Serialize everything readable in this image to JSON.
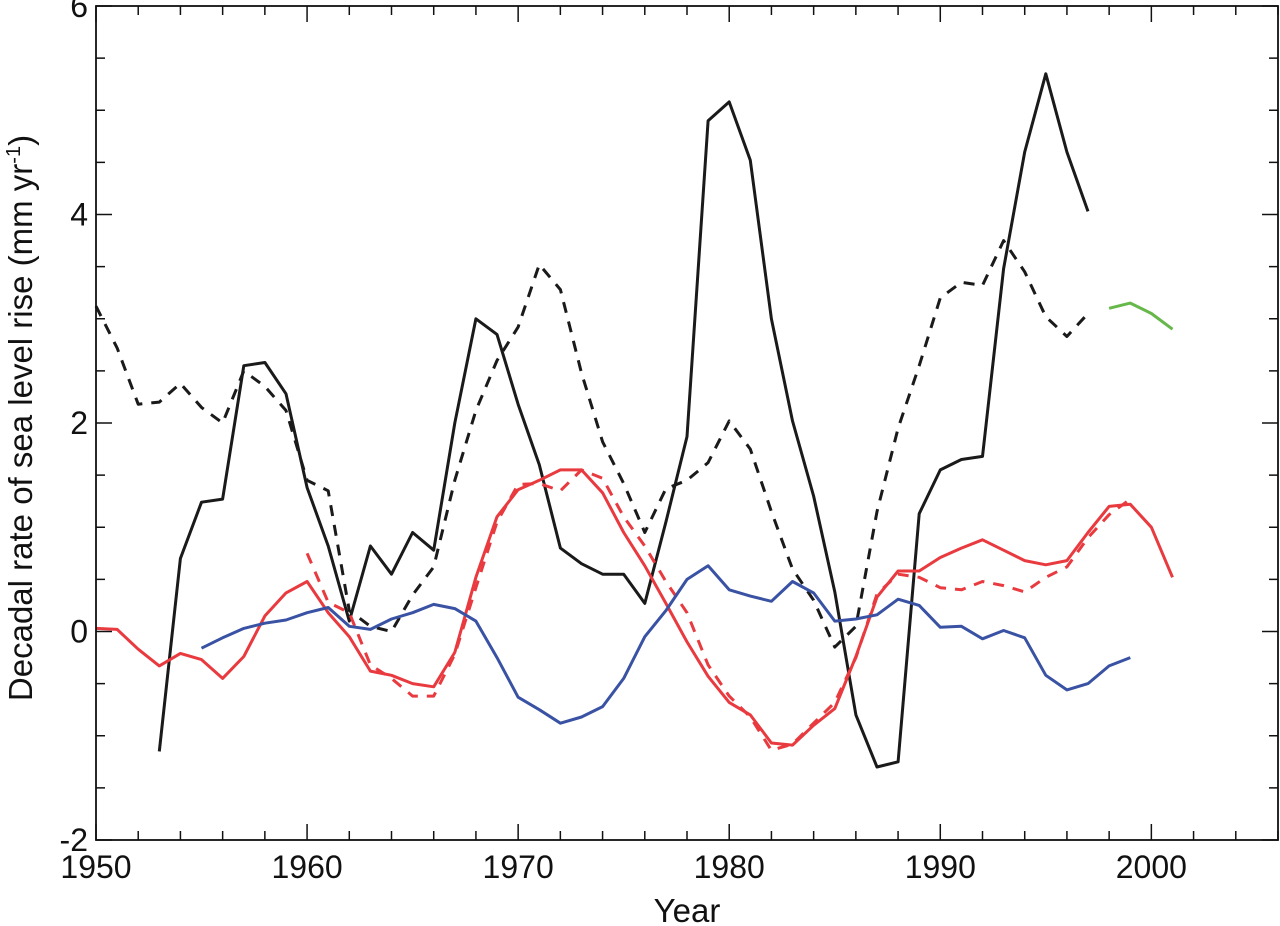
{
  "chart_data": {
    "type": "line",
    "xlabel": "Year",
    "ylabel": "Decadal rate of sea level rise (mm yr",
    "ylabel_sup": "-1",
    "ylabel_close": ")",
    "xlim": [
      1950,
      2006
    ],
    "ylim": [
      -2,
      6
    ],
    "x_ticks": [
      1950,
      1960,
      1970,
      1980,
      1990,
      2000
    ],
    "x_tick_labels": [
      "1950",
      "1960",
      "1970",
      "1980",
      "1990",
      "2000"
    ],
    "y_ticks": [
      -2,
      0,
      2,
      4,
      6
    ],
    "y_tick_labels": [
      "-2",
      "0",
      "2",
      "4",
      "6"
    ],
    "x_minor_step": 2,
    "y_minor_step": 0.5,
    "grid": false,
    "legend": "none",
    "series": [
      {
        "color": "#1a1a1a",
        "style": "solid",
        "x": [
          1953,
          1954,
          1955,
          1956,
          1957,
          1958,
          1959,
          1960,
          1961,
          1962,
          1963,
          1964,
          1965,
          1966,
          1967,
          1968,
          1969,
          1970,
          1971,
          1972,
          1973,
          1974,
          1975,
          1976,
          1977,
          1978,
          1979,
          1980,
          1981,
          1982,
          1983,
          1984,
          1985,
          1986,
          1987,
          1988,
          1989,
          1990,
          1991,
          1992,
          1993,
          1994,
          1995,
          1996,
          1997
        ],
        "y": [
          -1.15,
          0.7,
          1.24,
          1.27,
          2.55,
          2.58,
          2.28,
          1.38,
          0.82,
          0.1,
          0.82,
          0.55,
          0.95,
          0.78,
          2.0,
          3.0,
          2.85,
          2.18,
          1.6,
          0.8,
          0.65,
          0.55,
          0.55,
          0.27,
          1.05,
          1.87,
          4.9,
          5.08,
          4.52,
          3.0,
          2.02,
          1.3,
          0.38,
          -0.8,
          -1.3,
          -1.25,
          1.13,
          1.55,
          1.65,
          1.68,
          3.48,
          4.6,
          5.35,
          4.6,
          4.03
        ]
      },
      {
        "color": "#1a1a1a",
        "style": "dashed",
        "x": [
          1950,
          1951,
          1952,
          1953,
          1954,
          1955,
          1956,
          1957,
          1958,
          1959,
          1960,
          1961,
          1962,
          1963,
          1964,
          1965,
          1966,
          1967,
          1968,
          1969,
          1970,
          1971,
          1972,
          1973,
          1974,
          1975,
          1976,
          1977,
          1978,
          1979,
          1980,
          1981,
          1982,
          1983,
          1984,
          1985,
          1986,
          1987,
          1988,
          1989,
          1990,
          1991,
          1992,
          1993,
          1994,
          1995,
          1996,
          1997
        ],
        "y": [
          3.12,
          2.72,
          2.18,
          2.2,
          2.38,
          2.15,
          2.0,
          2.5,
          2.35,
          2.12,
          1.45,
          1.35,
          0.2,
          0.05,
          0.0,
          0.35,
          0.62,
          1.45,
          2.12,
          2.6,
          2.92,
          3.52,
          3.28,
          2.48,
          1.82,
          1.42,
          0.95,
          1.37,
          1.45,
          1.62,
          2.02,
          1.75,
          1.15,
          0.6,
          0.3,
          -0.15,
          0.05,
          1.15,
          1.95,
          2.55,
          3.2,
          3.35,
          3.32,
          3.75,
          3.45,
          3.02,
          2.83,
          3.05
        ]
      },
      {
        "color": "#e83a3f",
        "style": "solid",
        "x": [
          1950,
          1951,
          1952,
          1953,
          1954,
          1955,
          1956,
          1957,
          1958,
          1959,
          1960,
          1961,
          1962,
          1963,
          1964,
          1965,
          1966,
          1967,
          1968,
          1969,
          1970,
          1971,
          1972,
          1973,
          1974,
          1975,
          1976,
          1977,
          1978,
          1979,
          1980,
          1981,
          1982,
          1983,
          1984,
          1985,
          1986,
          1987,
          1988,
          1989,
          1990,
          1991,
          1992,
          1993,
          1994,
          1995,
          1996,
          1997,
          1998,
          1999,
          2000,
          2001
        ],
        "y": [
          0.03,
          0.02,
          -0.17,
          -0.33,
          -0.21,
          -0.27,
          -0.45,
          -0.24,
          0.15,
          0.37,
          0.48,
          0.18,
          -0.05,
          -0.38,
          -0.42,
          -0.5,
          -0.53,
          -0.2,
          0.52,
          1.1,
          1.36,
          1.45,
          1.55,
          1.55,
          1.33,
          0.95,
          0.63,
          0.27,
          -0.1,
          -0.43,
          -0.68,
          -0.8,
          -1.07,
          -1.09,
          -0.9,
          -0.74,
          -0.24,
          0.33,
          0.58,
          0.58,
          0.71,
          0.8,
          0.88,
          0.78,
          0.68,
          0.64,
          0.68,
          0.95,
          1.2,
          1.22,
          1.0,
          0.52
        ]
      },
      {
        "color": "#e83a3f",
        "style": "dashed",
        "x": [
          1960,
          1961,
          1962,
          1963,
          1964,
          1965,
          1966,
          1967,
          1968,
          1969,
          1970,
          1971,
          1972,
          1973,
          1974,
          1975,
          1976,
          1977,
          1978,
          1979,
          1980,
          1981,
          1982,
          1983,
          1984,
          1985,
          1986,
          1987,
          1988,
          1989,
          1990,
          1991,
          1992,
          1993,
          1994,
          1995,
          1996,
          1997,
          1998,
          1999
        ],
        "y": [
          0.75,
          0.28,
          0.18,
          -0.32,
          -0.45,
          -0.62,
          -0.62,
          -0.22,
          0.42,
          1.05,
          1.41,
          1.42,
          1.35,
          1.55,
          1.47,
          1.1,
          0.82,
          0.48,
          0.18,
          -0.32,
          -0.62,
          -0.82,
          -1.14,
          -1.08,
          -0.88,
          -0.68,
          -0.25,
          0.36,
          0.55,
          0.52,
          0.42,
          0.4,
          0.48,
          0.44,
          0.38,
          0.52,
          0.62,
          0.9,
          1.12,
          1.27
        ]
      },
      {
        "color": "#3952a3",
        "style": "solid",
        "x": [
          1955,
          1956,
          1957,
          1958,
          1959,
          1960,
          1961,
          1962,
          1963,
          1964,
          1965,
          1966,
          1967,
          1968,
          1969,
          1970,
          1971,
          1972,
          1973,
          1974,
          1975,
          1976,
          1977,
          1978,
          1979,
          1980,
          1981,
          1982,
          1983,
          1984,
          1985,
          1986,
          1987,
          1988,
          1989,
          1990,
          1991,
          1992,
          1993,
          1994,
          1995,
          1996,
          1997,
          1998,
          1999
        ],
        "y": [
          -0.16,
          -0.06,
          0.03,
          0.08,
          0.11,
          0.18,
          0.23,
          0.05,
          0.02,
          0.12,
          0.18,
          0.26,
          0.22,
          0.1,
          -0.25,
          -0.63,
          -0.75,
          -0.88,
          -0.82,
          -0.72,
          -0.45,
          -0.05,
          0.2,
          0.5,
          0.63,
          0.4,
          0.34,
          0.29,
          0.48,
          0.37,
          0.1,
          0.12,
          0.16,
          0.31,
          0.25,
          0.04,
          0.05,
          -0.07,
          0.01,
          -0.06,
          -0.42,
          -0.56,
          -0.5,
          -0.33,
          -0.25
        ]
      },
      {
        "color": "#66b84a",
        "style": "solid",
        "x": [
          1998,
          1999,
          2000,
          2001
        ],
        "y": [
          3.1,
          3.15,
          3.05,
          2.9
        ]
      }
    ]
  }
}
